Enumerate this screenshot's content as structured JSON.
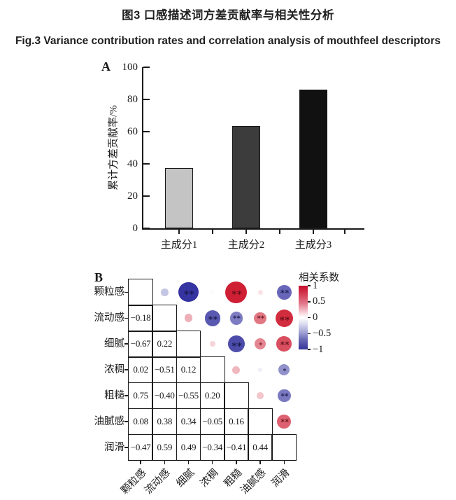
{
  "figure": {
    "title_zh": "图3 口感描述词方差贡献率与相关性分析",
    "title_en": "Fig.3 Variance contribution rates and correlation analysis of mouthfeel descriptors"
  },
  "chart_data": [
    {
      "type": "bar",
      "panel_label": "A",
      "categories": [
        "主成分1",
        "主成分2",
        "主成分3"
      ],
      "values": [
        37.2,
        63.4,
        86.0
      ],
      "ylabel": "累计方差贡献率/%",
      "ylim": [
        0,
        100
      ],
      "yticks": [
        0,
        20,
        40,
        60,
        80,
        100
      ],
      "bar_colors": [
        "#c4c4c4",
        "#3c3c3c",
        "#111111"
      ],
      "axis_color": "#1a1a1a",
      "grid": false
    },
    {
      "type": "heatmap",
      "subtype": "correlation-matrix",
      "panel_label": "B",
      "labels": [
        "颗粒感",
        "流动感",
        "细腻",
        "浓稠",
        "粗糙",
        "油腻感",
        "润滑"
      ],
      "legend": {
        "title": "相关系数",
        "ticks": [
          1,
          0.5,
          0,
          -0.5,
          -1
        ],
        "positive_color": "#cf1f34",
        "negative_color": "#3534a0",
        "zero_color": "#ffffff"
      },
      "pairs": [
        {
          "row": "流动感",
          "col": "颗粒感",
          "r": 1,
          "c": 0,
          "value": -0.18,
          "sig": ""
        },
        {
          "row": "细腻",
          "col": "颗粒感",
          "r": 2,
          "c": 0,
          "value": -0.67,
          "sig": "**"
        },
        {
          "row": "细腻",
          "col": "流动感",
          "r": 2,
          "c": 1,
          "value": 0.22,
          "sig": ""
        },
        {
          "row": "浓稠",
          "col": "颗粒感",
          "r": 3,
          "c": 0,
          "value": 0.02,
          "sig": ""
        },
        {
          "row": "浓稠",
          "col": "流动感",
          "r": 3,
          "c": 1,
          "value": -0.51,
          "sig": "**"
        },
        {
          "row": "浓稠",
          "col": "细腻",
          "r": 3,
          "c": 2,
          "value": 0.12,
          "sig": ""
        },
        {
          "row": "粗糙",
          "col": "颗粒感",
          "r": 4,
          "c": 0,
          "value": 0.75,
          "sig": "**"
        },
        {
          "row": "粗糙",
          "col": "流动感",
          "r": 4,
          "c": 1,
          "value": -0.4,
          "sig": "**"
        },
        {
          "row": "粗糙",
          "col": "细腻",
          "r": 4,
          "c": 2,
          "value": -0.55,
          "sig": "**"
        },
        {
          "row": "粗糙",
          "col": "浓稠",
          "r": 4,
          "c": 3,
          "value": 0.2,
          "sig": ""
        },
        {
          "row": "油腻感",
          "col": "颗粒感",
          "r": 5,
          "c": 0,
          "value": 0.08,
          "sig": ""
        },
        {
          "row": "油腻感",
          "col": "流动感",
          "r": 5,
          "c": 1,
          "value": 0.38,
          "sig": "**"
        },
        {
          "row": "油腻感",
          "col": "细腻",
          "r": 5,
          "c": 2,
          "value": 0.34,
          "sig": "*"
        },
        {
          "row": "油腻感",
          "col": "浓稠",
          "r": 5,
          "c": 3,
          "value": -0.05,
          "sig": ""
        },
        {
          "row": "油腻感",
          "col": "粗糙",
          "r": 5,
          "c": 4,
          "value": 0.16,
          "sig": ""
        },
        {
          "row": "润滑",
          "col": "颗粒感",
          "r": 6,
          "c": 0,
          "value": -0.47,
          "sig": "**"
        },
        {
          "row": "润滑",
          "col": "流动感",
          "r": 6,
          "c": 1,
          "value": 0.59,
          "sig": "**"
        },
        {
          "row": "润滑",
          "col": "细腻",
          "r": 6,
          "c": 2,
          "value": 0.49,
          "sig": "**"
        },
        {
          "row": "润滑",
          "col": "浓稠",
          "r": 6,
          "c": 3,
          "value": -0.34,
          "sig": "*"
        },
        {
          "row": "润滑",
          "col": "粗糙",
          "r": 6,
          "c": 4,
          "value": -0.41,
          "sig": "**"
        },
        {
          "row": "润滑",
          "col": "油腻感",
          "r": 6,
          "c": 5,
          "value": 0.44,
          "sig": "**"
        }
      ]
    }
  ]
}
